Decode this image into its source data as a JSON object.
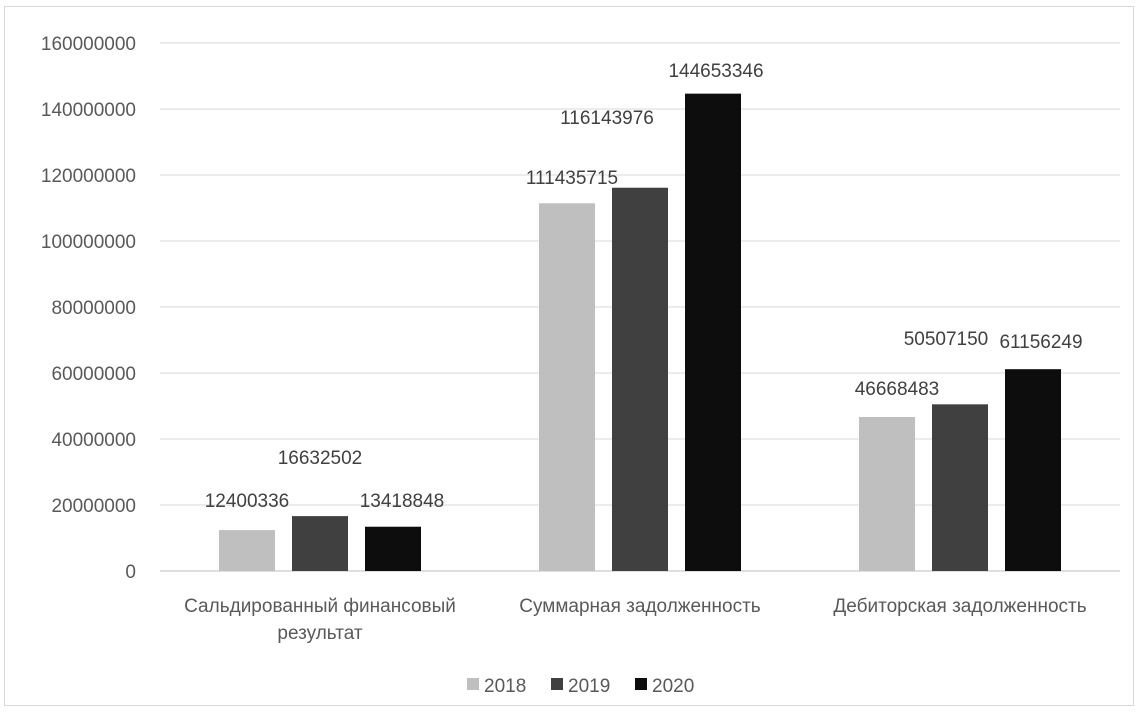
{
  "chart_data": {
    "type": "bar",
    "title": "",
    "xlabel": "",
    "ylabel": "",
    "ylim": [
      0,
      160000000
    ],
    "yticks": [
      0,
      20000000,
      40000000,
      60000000,
      80000000,
      100000000,
      120000000,
      140000000,
      160000000
    ],
    "ytick_labels": [
      "0",
      "20000000",
      "40000000",
      "60000000",
      "80000000",
      "100000000",
      "120000000",
      "140000000",
      "160000000"
    ],
    "grid": true,
    "legend_position": "bottom",
    "categories": [
      [
        "Сальдированный финансовый",
        "результат"
      ],
      [
        "Суммарная задолженность"
      ],
      [
        "Дебиторская задолженность"
      ]
    ],
    "series": [
      {
        "name": "2018",
        "color": "#bfbfbf",
        "values": [
          12400336,
          111435715,
          46668483
        ],
        "labels": [
          "12400336",
          "111435715",
          "46668483"
        ]
      },
      {
        "name": "2019",
        "color": "#404040",
        "values": [
          16632502,
          116143976,
          50507150
        ],
        "labels": [
          "16632502",
          "116143976",
          "50507150"
        ]
      },
      {
        "name": "2020",
        "color": "#0d0d0d",
        "values": [
          13418848,
          144653346,
          61156249
        ],
        "labels": [
          "13418848",
          "144653346",
          "61156249"
        ]
      }
    ]
  }
}
